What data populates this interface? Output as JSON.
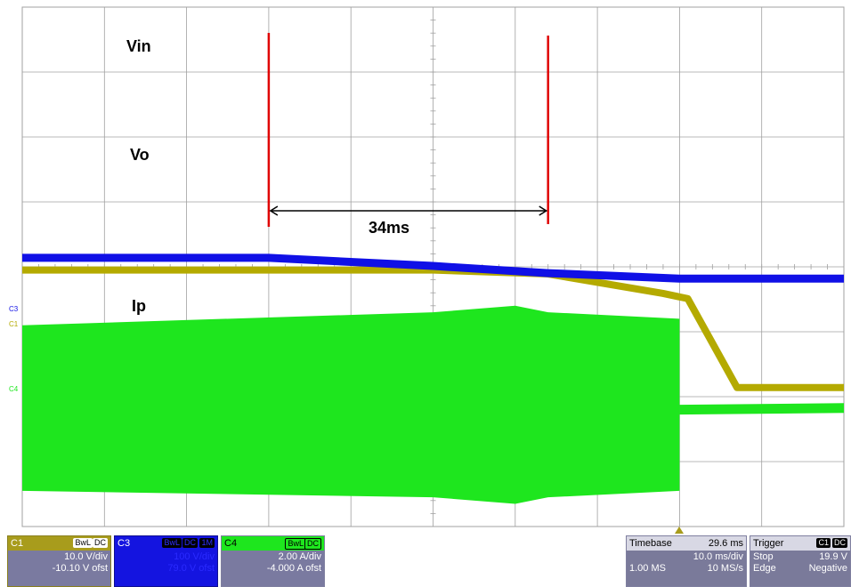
{
  "colors": {
    "vin": "#1010e6",
    "vo": "#b4aa00",
    "ip": "#1ee61e",
    "cursor": "#e00000",
    "grid": "#a0a0a0",
    "c1_panel": "#a89c1c",
    "c3_panel": "#1414e0",
    "c4_panel": "#6a6a8a",
    "tb_panel": "#7a7a9a"
  },
  "chart_data": {
    "type": "line",
    "x_unit": "ms",
    "xlim": [
      -50,
      50
    ],
    "grid": "10 x 8 divisions with minor ticks on centre axes",
    "series": [
      {
        "name": "Vin",
        "channel": "C3",
        "unit": "V",
        "x": [
          -50,
          -20,
          0,
          14,
          30,
          50
        ],
        "y": [
          79.0,
          79.0,
          66.5,
          55.5,
          47.0,
          47.0
        ]
      },
      {
        "name": "Vo",
        "channel": "C1",
        "unit": "V",
        "x": [
          -50,
          -20,
          0,
          14,
          28,
          31,
          37,
          50
        ],
        "y": [
          9.6,
          9.6,
          9.6,
          9.0,
          6.0,
          5.2,
          -8.5,
          -8.5
        ]
      },
      {
        "name": "Ip",
        "channel": "C4",
        "unit": "A",
        "style": "envelope",
        "x": [
          -50,
          0,
          10,
          14,
          30
        ],
        "y_high": [
          2.2,
          2.6,
          2.8,
          2.6,
          2.4
        ],
        "y_low": [
          -2.9,
          -3.1,
          -3.3,
          -3.1,
          -2.9
        ],
        "after": {
          "x": [
            30,
            50
          ],
          "y_high": [
            -0.25,
            -0.2
          ],
          "y_low": [
            -0.55,
            -0.5
          ]
        }
      }
    ],
    "annotations": [
      {
        "text": "Vin",
        "series": "Vin"
      },
      {
        "text": "Vo",
        "series": "Vo"
      },
      {
        "text": "Ip",
        "series": "Ip"
      },
      {
        "text": "34ms",
        "type": "interval",
        "x_start": -20,
        "x_end": 14
      }
    ],
    "channel_markers": [
      "C3",
      "C1",
      "C4"
    ]
  },
  "panels": {
    "c1": {
      "name": "C1",
      "bw": "BwL",
      "coupling": "DC",
      "scale": "10.0 V/div",
      "offset": "-10.10 V ofst"
    },
    "c3": {
      "name": "C3",
      "bw": "BwL",
      "coupling": "DC",
      "extra": "1M",
      "scale": "100 V/div",
      "offset": "79.0 V ofst"
    },
    "c4": {
      "name": "C4",
      "bw": "BwL",
      "coupling": "DC",
      "scale": "2.00 A/div",
      "offset": "-4.000 A ofst"
    },
    "timebase": {
      "label": "Timebase",
      "delay": "29.6 ms",
      "scale": "10.0 ms/div",
      "samples": "1.00 MS",
      "rate": "10 MS/s"
    },
    "trigger": {
      "label": "Trigger",
      "channel": "C1",
      "coupling": "DC",
      "mode": "Stop",
      "level": "19.9 V",
      "type": "Edge",
      "slope": "Negative"
    }
  }
}
